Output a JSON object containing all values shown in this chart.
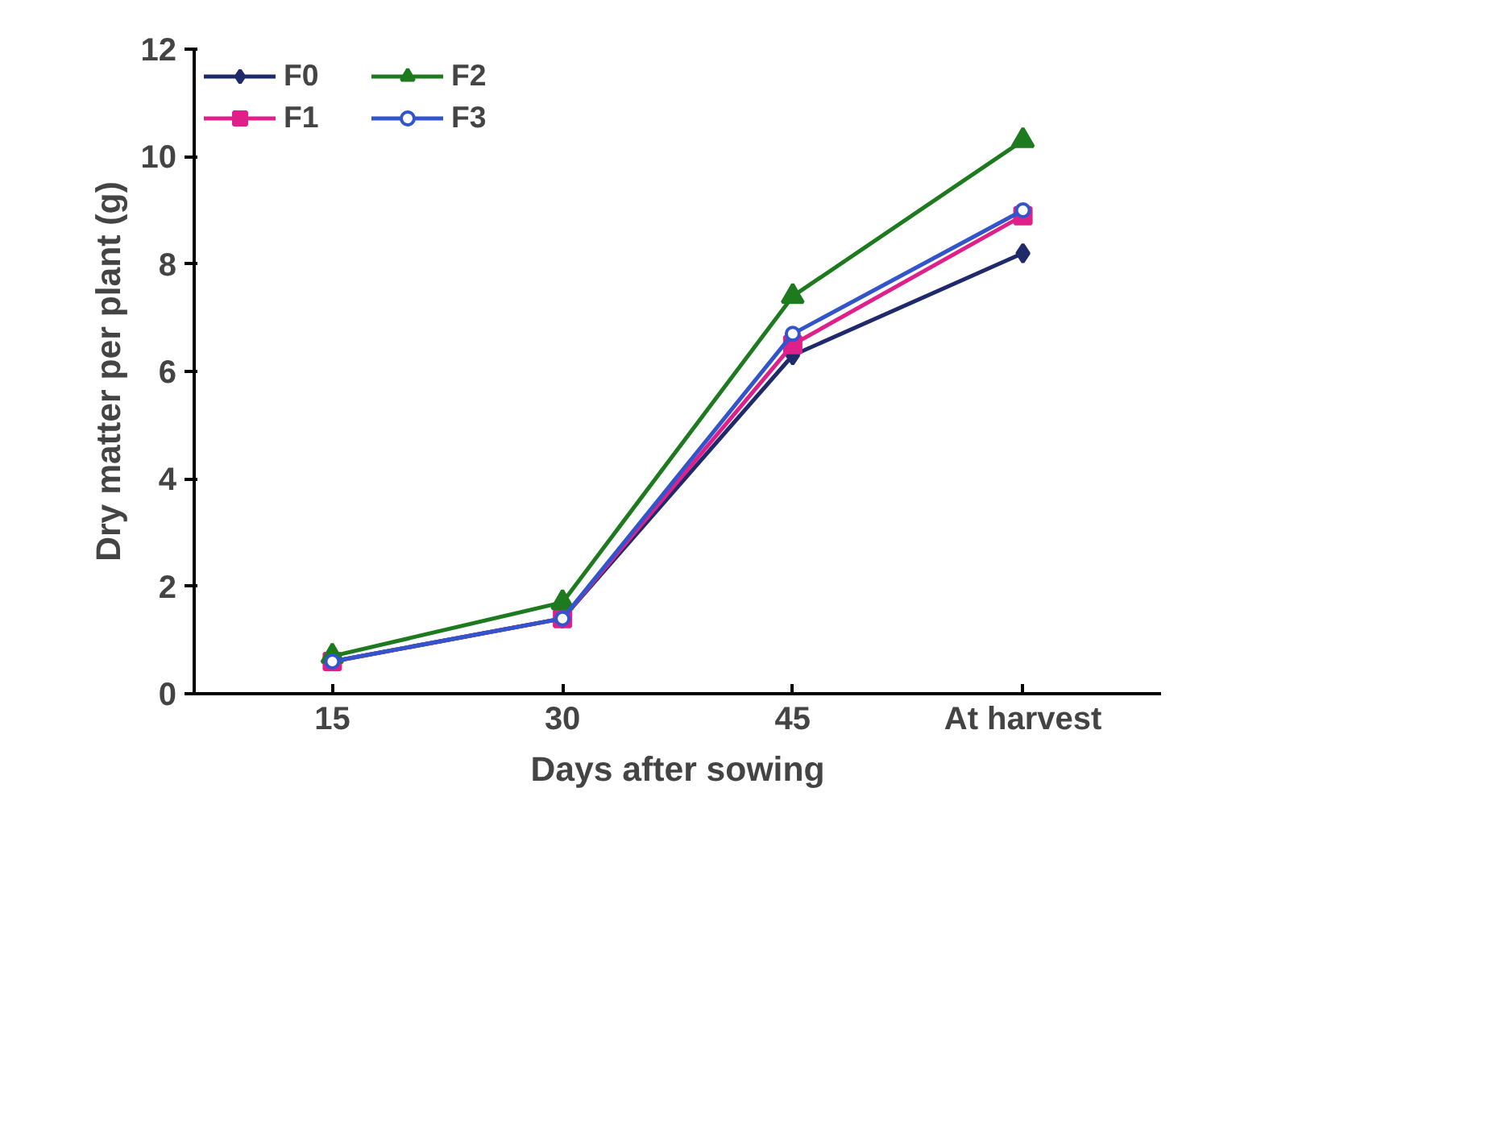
{
  "chart_data": {
    "type": "line",
    "xlabel": "Days after sowing",
    "ylabel": "Dry matter per plant (g)",
    "categories": [
      "15",
      "30",
      "45",
      "At harvest"
    ],
    "ylim": [
      0,
      12
    ],
    "yticks": [
      0,
      2,
      4,
      6,
      8,
      10,
      12
    ],
    "grid": false,
    "legend": "top left",
    "series": [
      {
        "name": "F0",
        "color": "#1f2a6b",
        "marker": "diamond",
        "values": [
          0.6,
          1.4,
          6.3,
          8.2
        ]
      },
      {
        "name": "F1",
        "color": "#e0208a",
        "marker": "square",
        "values": [
          0.6,
          1.4,
          6.5,
          8.9
        ]
      },
      {
        "name": "F2",
        "color": "#1e7a1e",
        "marker": "triangle",
        "values": [
          0.7,
          1.7,
          7.4,
          10.3
        ]
      },
      {
        "name": "F3",
        "color": "#3355cc",
        "marker": "circle",
        "values": [
          0.6,
          1.4,
          6.7,
          9.0
        ]
      }
    ]
  }
}
